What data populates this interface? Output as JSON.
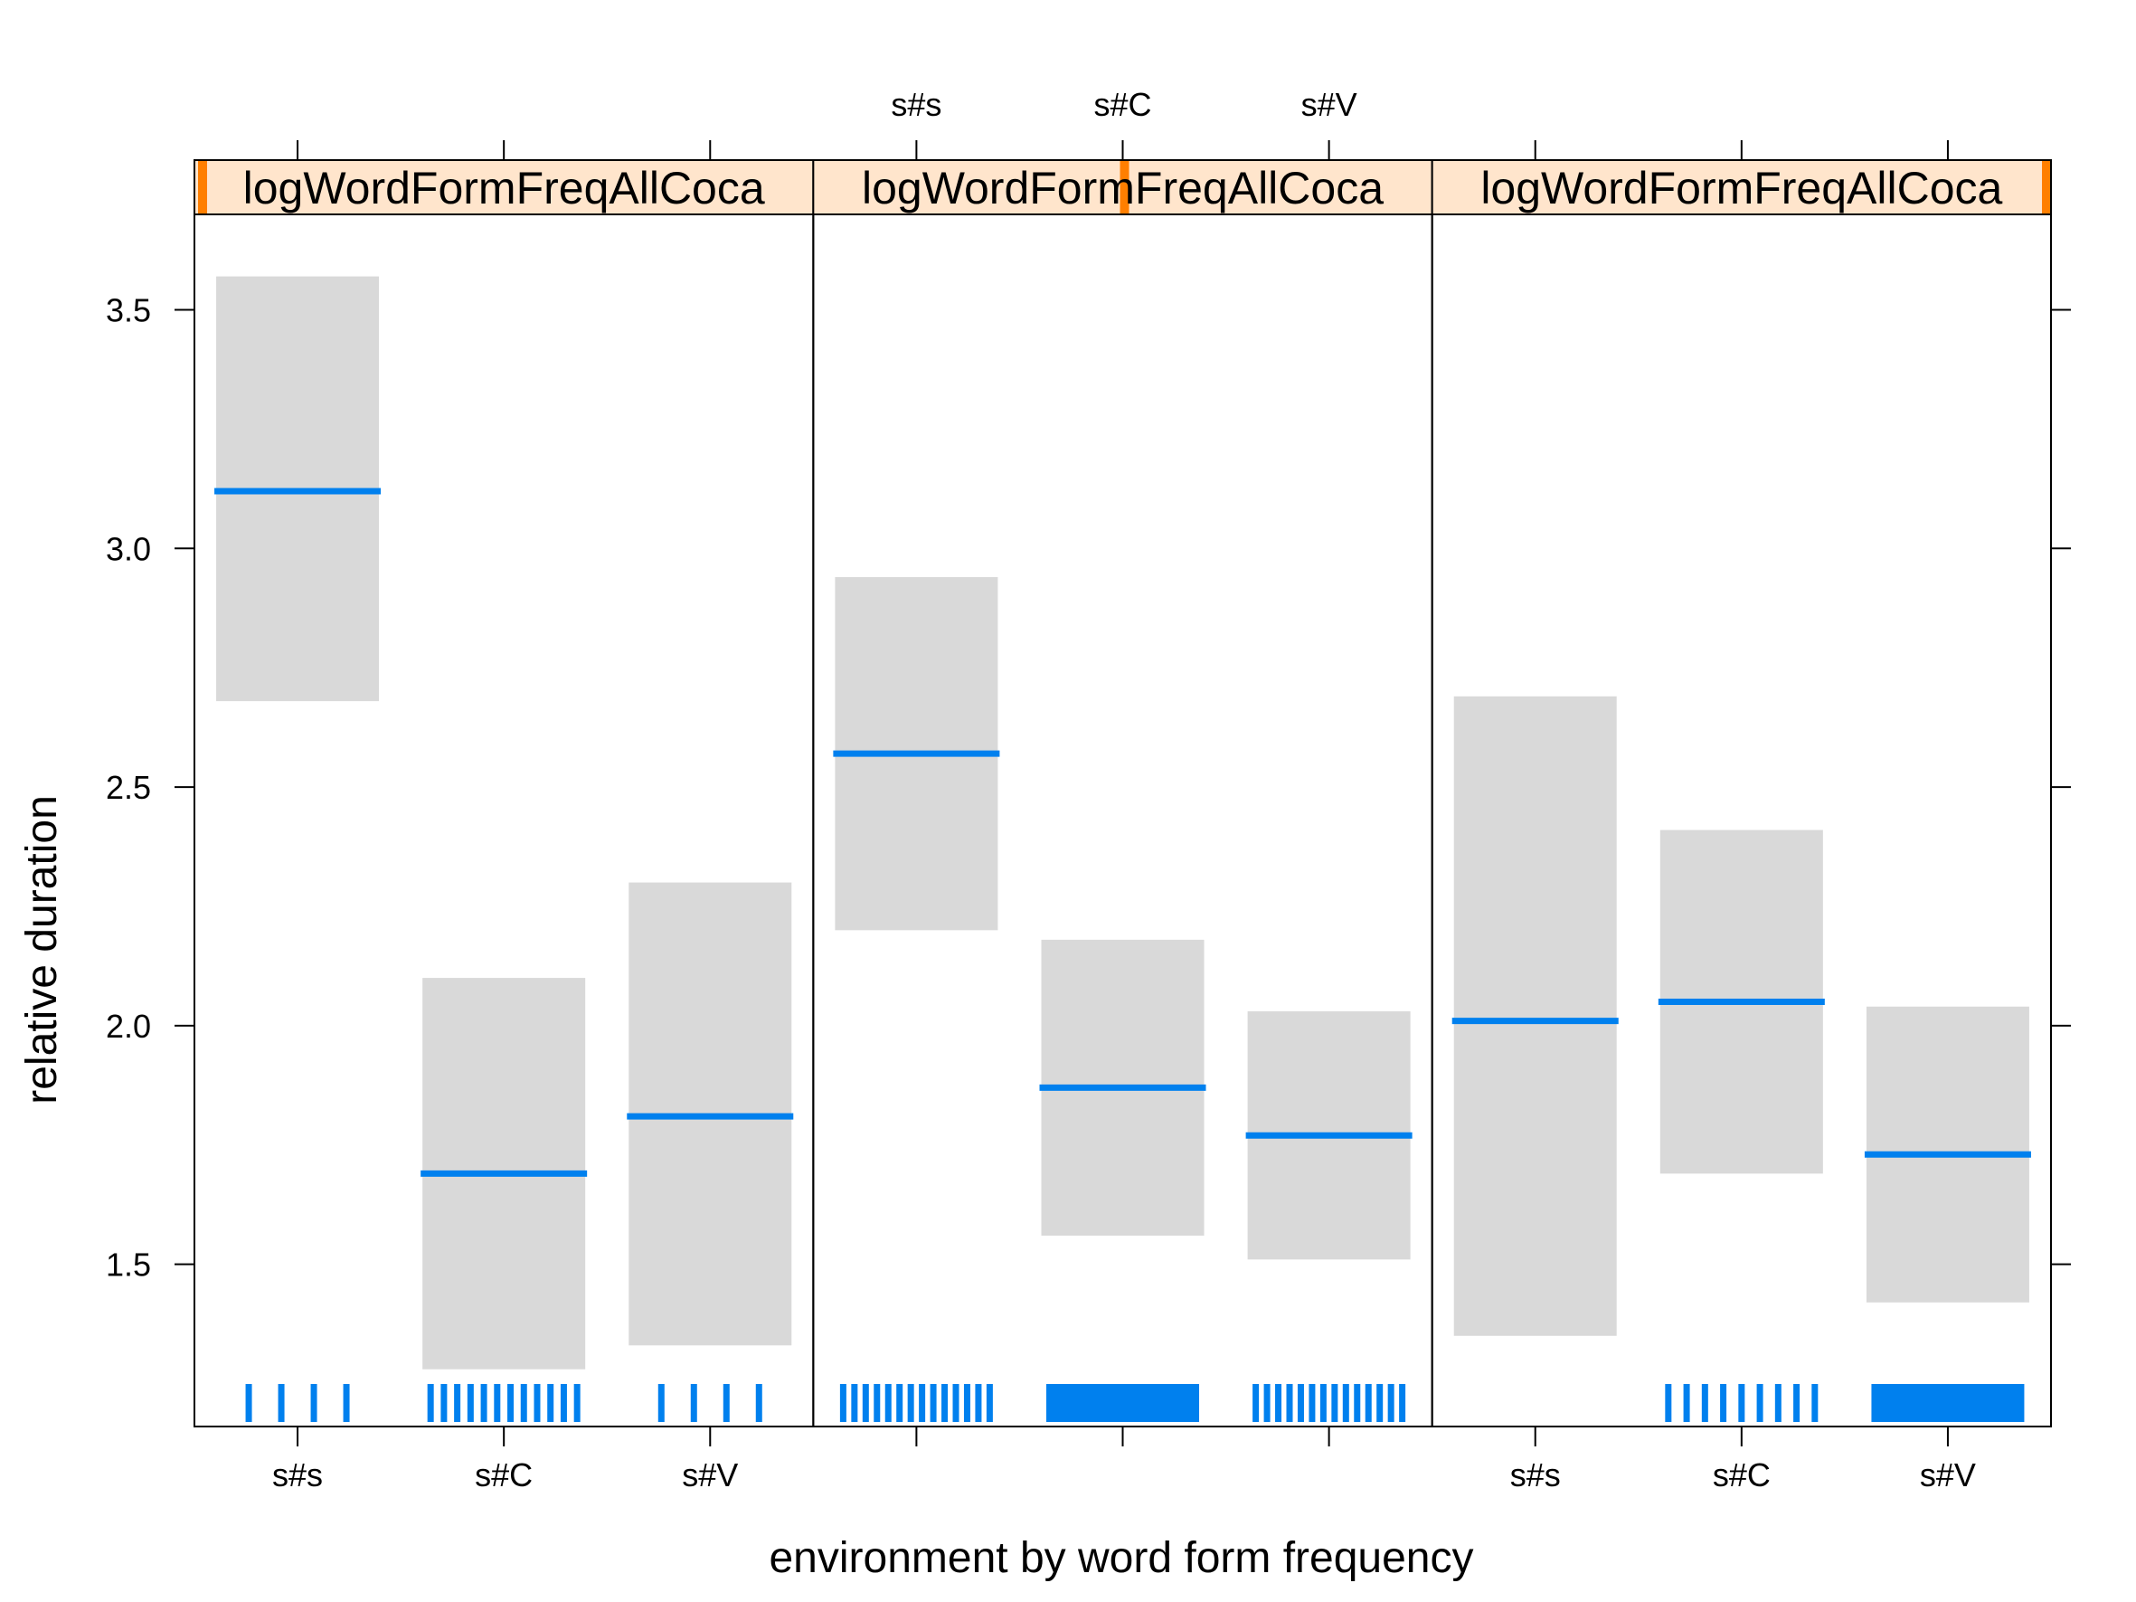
{
  "colors": {
    "fit_line": "#0080ee",
    "ci_band": "#d9d9d9",
    "strip_bg": "#ffe5cc",
    "strip_indicator": "#ff7f00",
    "rug": "#0080ee"
  },
  "chart_data": {
    "type": "effect-plot",
    "xlabel": "environment by word form frequency",
    "ylabel": "relative duration",
    "ylim": [
      1.16,
      3.7
    ],
    "yticks": [
      "1.5",
      "2.0",
      "2.5",
      "3.0",
      "3.5"
    ],
    "ytick_values": [
      1.5,
      2.0,
      2.5,
      3.0,
      3.5
    ],
    "categories": [
      "s#s",
      "s#C",
      "s#V"
    ],
    "grid": false,
    "panels": [
      {
        "strip_label": "logWordFormFreqAllCoca",
        "strip_level": 0.0,
        "fit": [
          3.12,
          1.69,
          1.81
        ],
        "lower": [
          2.68,
          1.28,
          1.33
        ],
        "upper": [
          3.57,
          2.1,
          2.3
        ],
        "rug_counts": [
          4,
          12,
          4
        ]
      },
      {
        "strip_label": "logWordFormFreqAllCoca",
        "strip_level": 0.5,
        "fit": [
          2.57,
          1.87,
          1.77
        ],
        "lower": [
          2.2,
          1.56,
          1.51
        ],
        "upper": [
          2.94,
          2.18,
          2.03
        ],
        "rug_counts": [
          14,
          40,
          14
        ]
      },
      {
        "strip_label": "logWordFormFreqAllCoca",
        "strip_level": 1.0,
        "fit": [
          2.01,
          2.05,
          1.73
        ],
        "lower": [
          1.35,
          1.69,
          1.42
        ],
        "upper": [
          2.69,
          2.41,
          2.04
        ],
        "rug_counts": [
          0,
          9,
          40
        ]
      }
    ],
    "x_axis_bottom_panels": [
      0,
      2
    ],
    "x_axis_top_panels": [
      1
    ]
  }
}
